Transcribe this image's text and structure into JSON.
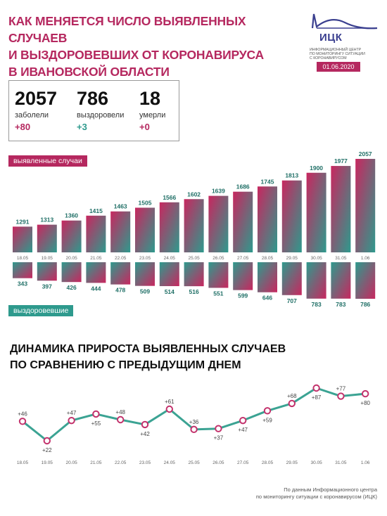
{
  "header": {
    "title": "Как меняется число выявленных случаев\nи выздоровевших от коронавируса\nв Ивановской области"
  },
  "logo": {
    "name": "ИЦК",
    "subtitle": "Информационный центр\nпо мониторингу ситуации\nс коронавирусом",
    "date": "01.06.2020"
  },
  "stats": [
    {
      "value": "2057",
      "label": "заболели",
      "delta": "+80"
    },
    {
      "value": "786",
      "label": "выздоровели",
      "delta": "+3"
    },
    {
      "value": "18",
      "label": "умерли",
      "delta": "+0"
    }
  ],
  "colors": {
    "accent": "#b5285f",
    "teal": "#2e9a8d",
    "line": "#3ba393",
    "point": "#c3326c"
  },
  "chart_data": [
    {
      "type": "bar",
      "title": "выявленные случаи",
      "categories": [
        "18.05",
        "19.05",
        "20.05",
        "21.05",
        "22.05",
        "23.05",
        "24.05",
        "25.05",
        "26.05",
        "27.05",
        "28.05",
        "29.05",
        "30.05",
        "31.05",
        "1.06"
      ],
      "values": [
        1291,
        1313,
        1360,
        1415,
        1463,
        1505,
        1566,
        1602,
        1639,
        1686,
        1745,
        1813,
        1900,
        1977,
        2057
      ]
    },
    {
      "type": "bar",
      "title": "выздоровевшие",
      "categories": [
        "18.05",
        "19.05",
        "20.05",
        "21.05",
        "22.05",
        "23.05",
        "24.05",
        "25.05",
        "26.05",
        "27.05",
        "28.05",
        "29.05",
        "30.05",
        "31.05",
        "1.06"
      ],
      "values": [
        343,
        397,
        426,
        444,
        478,
        509,
        514,
        516,
        551,
        599,
        646,
        707,
        783,
        783,
        786
      ]
    },
    {
      "type": "line",
      "title": "Динамика прироста выявленных случаев\nпо сравнению с предыдущим днем",
      "categories": [
        "18.05",
        "19.05",
        "20.05",
        "21.05",
        "22.05",
        "23.05",
        "24.05",
        "25.05",
        "26.05",
        "27.05",
        "28.05",
        "29.05",
        "30.05",
        "31.05",
        "1.06"
      ],
      "values": [
        46,
        22,
        47,
        55,
        48,
        42,
        61,
        36,
        37,
        47,
        59,
        68,
        87,
        77,
        80
      ],
      "labels": [
        "+46",
        "+22",
        "+47",
        "+55",
        "+48",
        "+42",
        "+61",
        "+36",
        "+37",
        "+47",
        "+59",
        "+68",
        "+87",
        "+77",
        "+80"
      ]
    }
  ],
  "footer": {
    "source": "По данным Информационного центра\nпо мониторингу ситуации с коронавирусом (ИЦК)"
  }
}
